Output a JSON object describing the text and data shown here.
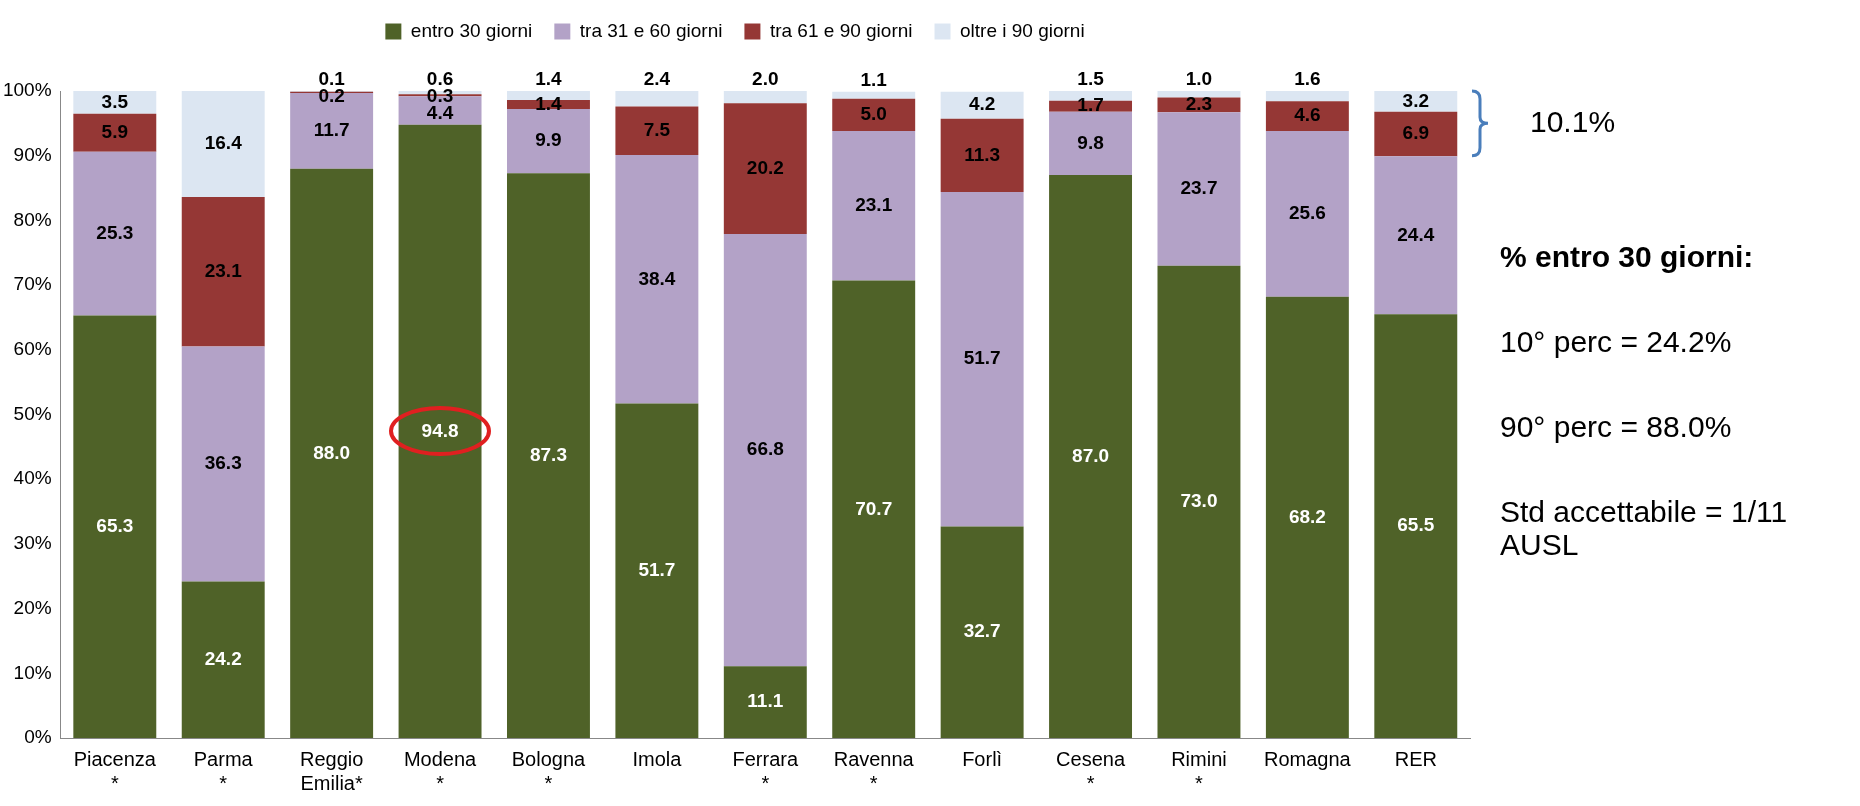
{
  "chart_data": {
    "type": "bar",
    "stacked": true,
    "categories": [
      "Piacenza\n*",
      "Parma\n*",
      "Reggio\nEmilia*",
      "Modena\n*",
      "Bologna\n*",
      "Imola",
      "Ferrara\n*",
      "Ravenna\n*",
      "Forlì",
      "Cesena\n*",
      "Rimini\n*",
      "Romagna",
      "RER"
    ],
    "series": [
      {
        "name": "entro 30 giorni",
        "color": "#4f6228",
        "values": [
          65.3,
          24.2,
          88.0,
          94.8,
          87.3,
          51.7,
          11.1,
          70.7,
          32.7,
          87.0,
          73.0,
          68.2,
          65.5
        ],
        "value_labels": [
          "65.3",
          "24.2",
          "88.0",
          "94.8",
          "87.3",
          "51.7",
          "11.1",
          "70.7",
          "32.7",
          "87.0",
          "73.0",
          "68.2",
          "65.5"
        ]
      },
      {
        "name": "tra 31 e 60 giorni",
        "color": "#b3a2c7",
        "values": [
          25.3,
          36.3,
          11.7,
          4.4,
          9.9,
          38.4,
          66.8,
          23.1,
          51.7,
          9.8,
          23.7,
          25.6,
          24.4
        ],
        "value_labels": [
          "25.3",
          "36.3",
          "11.7",
          "4.4",
          "9.9",
          "38.4",
          "66.8",
          "23.1",
          "51.7",
          "9.8",
          "23.7",
          "25.6",
          "24.4"
        ]
      },
      {
        "name": "tra 61 e 90 giorni",
        "color": "#953735",
        "values": [
          5.9,
          23.1,
          0.2,
          0.3,
          1.4,
          7.5,
          20.2,
          5.0,
          11.3,
          1.7,
          2.3,
          4.6,
          6.9
        ],
        "value_labels": [
          "5.9",
          "23.1",
          "0.2",
          "0.3",
          "1.4",
          "7.5",
          "20.2",
          "5.0",
          "11.3",
          "1.7",
          "2.3",
          "4.6",
          "6.9"
        ]
      },
      {
        "name": "oltre i 90 giorni",
        "color": "#dce6f2",
        "values": [
          3.5,
          16.4,
          0.1,
          0.6,
          1.4,
          2.4,
          2.0,
          1.1,
          4.2,
          1.5,
          1.0,
          1.6,
          3.2
        ],
        "value_labels": [
          "3.5",
          "16.4",
          "0.1",
          "0.6",
          "1.4",
          "2.4",
          "2.0",
          "1.1",
          "4.2",
          "1.5",
          "1.0",
          "1.6",
          "3.2"
        ]
      }
    ],
    "ylim": [
      0,
      100
    ],
    "yticks": [
      {
        "value": 0,
        "label": "0%"
      },
      {
        "value": 10,
        "label": "10%"
      },
      {
        "value": 20,
        "label": "20%"
      },
      {
        "value": 30,
        "label": "30%"
      },
      {
        "value": 40,
        "label": "40%"
      },
      {
        "value": 50,
        "label": "50%"
      },
      {
        "value": 60,
        "label": "60%"
      },
      {
        "value": 70,
        "label": "70%"
      },
      {
        "value": 80,
        "label": "80%"
      },
      {
        "value": 90,
        "label": "90%"
      },
      {
        "value": 100,
        "label": "100%"
      }
    ],
    "grid": false,
    "legend": "top",
    "annotations": [
      "10.1%",
      "% entro 30 giorni:",
      "10° perc = 24.2%",
      "90° perc = 88.0%",
      "Std accettabile = 1/11\nAUSL"
    ]
  }
}
